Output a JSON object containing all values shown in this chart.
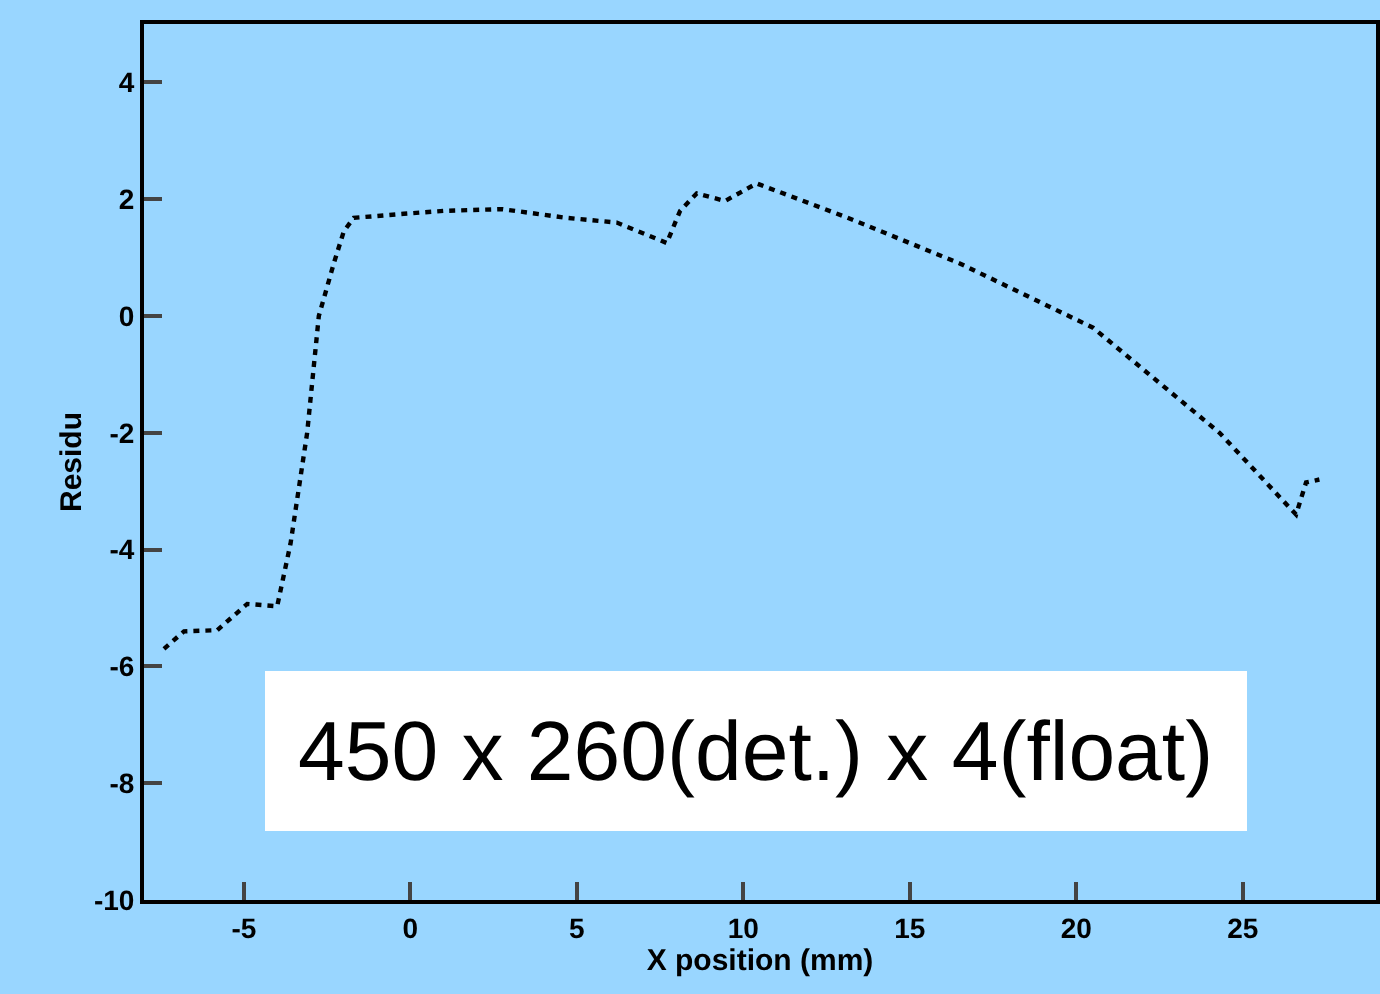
{
  "chart_data": {
    "type": "line",
    "xlabel": "X position (mm)",
    "ylabel": "Residu",
    "x": [
      -7.4,
      -6.8,
      -5.8,
      -4.9,
      -4.0,
      -3.6,
      -3.1,
      -2.75,
      -2.3,
      -2.0,
      -1.7,
      -0.2,
      1.0,
      2.75,
      4.7,
      6.2,
      7.7,
      8.1,
      8.6,
      9.45,
      10.4,
      13.1,
      16.5,
      20.5,
      24.3,
      26.6,
      26.9,
      27.3
    ],
    "series": [
      {
        "color": "#000000",
        "values": [
          -5.7,
          -5.4,
          -5.38,
          -4.93,
          -4.97,
          -3.9,
          -2.0,
          0,
          0.9,
          1.45,
          1.68,
          1.75,
          1.8,
          1.83,
          1.68,
          1.6,
          1.25,
          1.8,
          2.1,
          1.97,
          2.27,
          1.69,
          0.9,
          -0.2,
          -2.0,
          -3.4,
          -2.85,
          -2.8
        ]
      }
    ],
    "xlim": [
      -8,
      29
    ],
    "xticks": [
      -5,
      0,
      5,
      10,
      15,
      20,
      25
    ],
    "ylim": [
      -10,
      5
    ],
    "yticks": [
      -10,
      -8,
      -6,
      -4,
      -2,
      0,
      2,
      4
    ],
    "marker": "none",
    "line_style": "dotted",
    "annotations": [
      "450 x 260(det.) x 4(float)"
    ]
  }
}
